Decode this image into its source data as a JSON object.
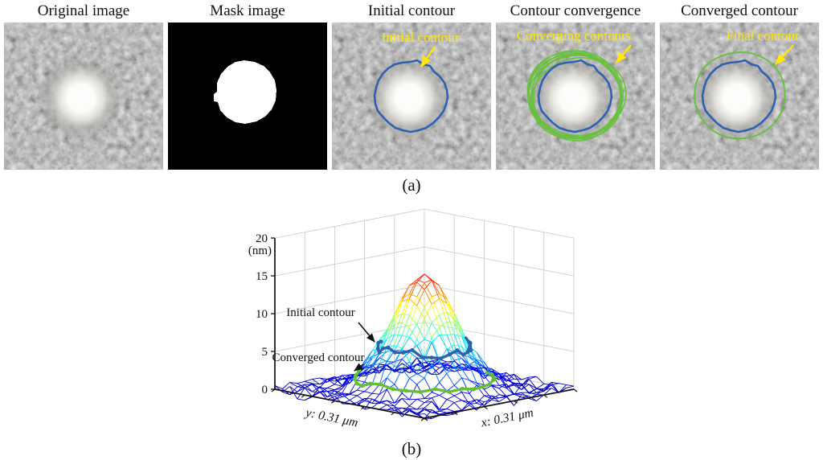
{
  "figure": {
    "subfig_a": "(a)",
    "subfig_b": "(b)",
    "panels": [
      {
        "title": "Original image"
      },
      {
        "title": "Mask image"
      },
      {
        "title": "Initial contour",
        "annotation": "Initial contour"
      },
      {
        "title": "Contour convergence",
        "annotation": "Converging contours"
      },
      {
        "title": "Converged contour",
        "annotation": "Final contour"
      }
    ]
  },
  "colors": {
    "annotation_yellow": "#ffe800",
    "initial_contour_blue": "#2e62b1",
    "converged_contour_green": "#63bf34",
    "grid_gray": "#c9c9c9",
    "axis_black": "#111111"
  },
  "chart_data": {
    "type": "line",
    "subtype": "3d-surface-mesh",
    "title": "",
    "zlabel_unit": "(nm)",
    "z_ticks": [
      0,
      5,
      10,
      15,
      20
    ],
    "z_range": [
      0,
      20
    ],
    "xlabel": "x: 0.31 μm",
    "ylabel": "y: 0.31 μm",
    "grid_size": 21,
    "peak_height_nm": 15.2,
    "base_noise_nm": 1.6,
    "peak_sigma_cells": 3.1,
    "annotations": [
      "Initial contour",
      "Converged contour"
    ],
    "contours": [
      {
        "name": "initial",
        "color": "#2e62b1",
        "radius_cells": 4.4,
        "height_nm": 5.6
      },
      {
        "name": "converged",
        "color": "#63bf34",
        "radius_cells": 6.6,
        "height_nm": 1.6
      }
    ]
  }
}
